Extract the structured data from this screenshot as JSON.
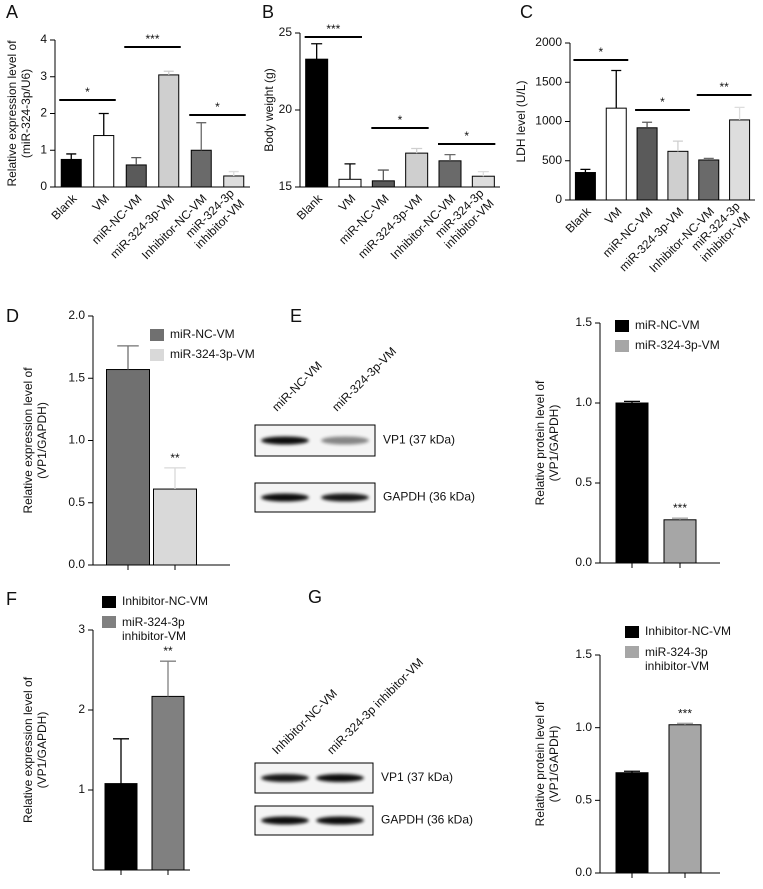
{
  "chart_data": [
    {
      "type": "bar",
      "panel": "A",
      "ylabel": "Relative expression level of\n(miR-324-3p/U6)",
      "categories": [
        "Blank",
        "VM",
        "miR-NC-VM",
        "miR-324-3p-VM",
        "Inhibitor-NC-VM",
        "miR-324-3p\ninhibitor-VM"
      ],
      "values": [
        0.75,
        1.4,
        0.6,
        3.05,
        1.0,
        0.3
      ],
      "errors": [
        0.15,
        0.6,
        0.2,
        0.1,
        0.75,
        0.12
      ],
      "colors": [
        "#000000",
        "#ffffff",
        "#5a5a5a",
        "#cfcfcf",
        "#6a6a6a",
        "#dddddd"
      ],
      "annotations": [
        "*",
        "***",
        "*"
      ],
      "ylim": [
        0,
        4
      ],
      "yticks": [
        0,
        1,
        2,
        3,
        4
      ]
    },
    {
      "type": "bar",
      "panel": "B",
      "ylabel": "Body weight (g)",
      "categories": [
        "Blank",
        "VM",
        "miR-NC-VM",
        "miR-324-3p-VM",
        "Inhibitor-NC-VM",
        "miR-324-3p\ninhibitor-VM"
      ],
      "values": [
        23.3,
        15.5,
        15.4,
        17.2,
        16.7,
        15.7
      ],
      "errors": [
        1.0,
        1.0,
        0.7,
        0.3,
        0.4,
        0.3
      ],
      "colors": [
        "#000000",
        "#ffffff",
        "#5a5a5a",
        "#cfcfcf",
        "#6a6a6a",
        "#dddddd"
      ],
      "annotations": [
        "***",
        "*",
        "*"
      ],
      "ylim": [
        15,
        25
      ],
      "yticks": [
        15,
        20,
        25
      ]
    },
    {
      "type": "bar",
      "panel": "C",
      "ylabel": "LDH level (U/L)",
      "categories": [
        "Blank",
        "VM",
        "miR-NC-VM",
        "miR-324-3p-VM",
        "Inhibitor-NC-VM",
        "miR-324-3p\ninhibitor-VM"
      ],
      "values": [
        350,
        1170,
        920,
        620,
        510,
        1020
      ],
      "errors": [
        40,
        480,
        70,
        130,
        20,
        160
      ],
      "colors": [
        "#000000",
        "#ffffff",
        "#5a5a5a",
        "#cfcfcf",
        "#6a6a6a",
        "#dddddd"
      ],
      "annotations": [
        "*",
        "*",
        "**"
      ],
      "ylim": [
        0,
        2000
      ],
      "yticks": [
        0,
        500,
        1000,
        1500,
        2000
      ]
    },
    {
      "type": "bar",
      "panel": "D",
      "ylabel": "Relative expression level of\n(VP1/GAPDH)",
      "series": [
        {
          "name": "miR-NC-VM",
          "color": "#707070",
          "values": [
            1.57
          ],
          "errors": [
            0.19
          ]
        },
        {
          "name": "miR-324-3p-VM",
          "color": "#d9d9d9",
          "values": [
            0.61
          ],
          "errors": [
            0.17
          ]
        }
      ],
      "annotations": [
        "**"
      ],
      "ylim": [
        0,
        2.0
      ],
      "yticks": [
        {
          "value": 0,
          "label": "0.0"
        },
        {
          "value": 0.5,
          "label": "0.5"
        },
        {
          "value": 1,
          "label": "1.0"
        },
        {
          "value": 1.5,
          "label": "1.5"
        },
        {
          "value": 2,
          "label": "2.0"
        }
      ]
    },
    {
      "type": "bar",
      "panel": "E",
      "ylabel": "Relative protein level of\n(VP1/GAPDH)",
      "series": [
        {
          "name": "miR-NC-VM",
          "color": "#000000",
          "values": [
            1.0
          ],
          "errors": [
            0.01
          ]
        },
        {
          "name": "miR-324-3p-VM",
          "color": "#a6a6a6",
          "values": [
            0.27
          ],
          "errors": [
            0.01
          ]
        }
      ],
      "annotations": [
        "***"
      ],
      "ylim": [
        0,
        1.5
      ],
      "yticks": [
        {
          "value": 0,
          "label": "0.0"
        },
        {
          "value": 0.5,
          "label": "0.5"
        },
        {
          "value": 1,
          "label": "1.0"
        },
        {
          "value": 1.5,
          "label": "1.5"
        }
      ]
    },
    {
      "type": "bar",
      "panel": "F",
      "ylabel": "Relative expression level of\n(VP1/GAPDH)",
      "series": [
        {
          "name": "Inhibitor-NC-VM",
          "color": "#000000",
          "values": [
            1.08
          ],
          "errors": [
            0.56
          ]
        },
        {
          "name": "miR-324-3p\ninhibitor-VM",
          "color": "#808080",
          "values": [
            2.17
          ],
          "errors": [
            0.44
          ]
        }
      ],
      "annotations": [
        "**"
      ],
      "ylim": [
        0,
        3
      ],
      "yticks": [
        1,
        2,
        3
      ]
    },
    {
      "type": "bar",
      "panel": "G",
      "ylabel": "Relative protein level of\n(VP1/GAPDH)",
      "series": [
        {
          "name": "Inhibitor-NC-VM",
          "color": "#000000",
          "values": [
            0.69
          ],
          "errors": [
            0.01
          ]
        },
        {
          "name": "miR-324-3p\ninhibitor-VM",
          "color": "#a6a6a6",
          "values": [
            1.02
          ],
          "errors": [
            0.01
          ]
        }
      ],
      "annotations": [
        "***"
      ],
      "ylim": [
        0,
        1.5
      ],
      "yticks": [
        {
          "value": 0,
          "label": "0.0"
        },
        {
          "value": 0.5,
          "label": "0.5"
        },
        {
          "value": 1,
          "label": "1.0"
        },
        {
          "value": 1.5,
          "label": "1.5"
        }
      ]
    }
  ],
  "blots": [
    {
      "lanes": [
        "miR-NC-VM",
        "miR-324-3p-VM"
      ],
      "bands": [
        "VP1 (37 kDa)",
        "GAPDH (36 kDa)"
      ]
    },
    {
      "lanes": [
        "Inhibitor-NC-VM",
        "miR-324-3p inhibitor-VM"
      ],
      "bands": [
        "VP1 (37 kDa)",
        "GAPDH (36 kDa)"
      ]
    }
  ]
}
